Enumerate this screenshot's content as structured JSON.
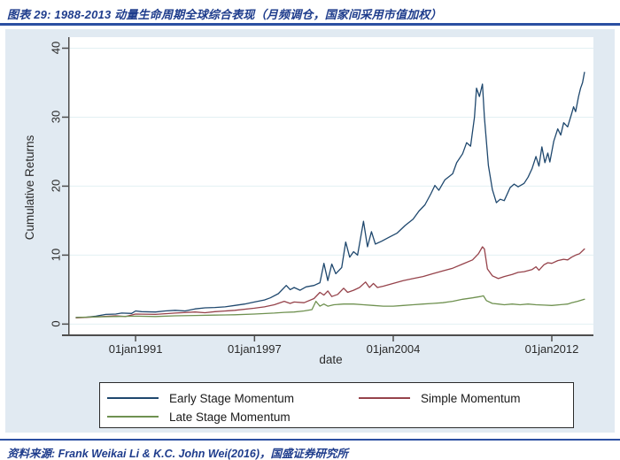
{
  "header": {
    "title": "图表 29:  1988-2013 动量生命周期全球综合表现（月频调仓，国家间采用市值加权）"
  },
  "footer": {
    "source": "资料来源:  Frank Weikai Li & K.C. John Wei(2016)，国盛证券研究所"
  },
  "colors": {
    "accent_blue": "#2b4fa2",
    "title_text": "#1e3c8c",
    "figure_background": "#e1eaf2",
    "plot_background": "#ffffff",
    "gridline": "#e2f0f2",
    "axis_line": "#4d4d4d",
    "navy_series": "#1f486e",
    "maroon_series": "#96434b",
    "green_series": "#6f9150"
  },
  "chart_data": {
    "type": "line",
    "title": "",
    "xlabel": "date",
    "ylabel": "Cumulative Returns",
    "grid": true,
    "legend_position": "bottom",
    "xlim": [
      1987.6,
      2014.1
    ],
    "ylim": [
      -1.75,
      41.6
    ],
    "y_ticks": [
      {
        "value": 0,
        "label": "0"
      },
      {
        "value": 10,
        "label": "10"
      },
      {
        "value": 20,
        "label": "20"
      },
      {
        "value": 30,
        "label": "30"
      },
      {
        "value": 40,
        "label": "40"
      }
    ],
    "x_ticks": [
      {
        "year": 1991,
        "label": "01jan1991"
      },
      {
        "year": 1997,
        "label": "01jan1997"
      },
      {
        "year": 2004,
        "label": "01jan2004"
      },
      {
        "year": 2012,
        "label": "01jan2012"
      }
    ],
    "series": [
      {
        "name": "Early Stage Momentum",
        "color": "#1f486e",
        "points": [
          [
            1988.0,
            0.95
          ],
          [
            1988.5,
            1.0
          ],
          [
            1989.0,
            1.15
          ],
          [
            1989.5,
            1.4
          ],
          [
            1990.0,
            1.45
          ],
          [
            1990.3,
            1.6
          ],
          [
            1990.8,
            1.55
          ],
          [
            1991.0,
            1.9
          ],
          [
            1991.3,
            1.8
          ],
          [
            1992.0,
            1.75
          ],
          [
            1992.5,
            1.9
          ],
          [
            1993.0,
            2.0
          ],
          [
            1993.5,
            1.9
          ],
          [
            1994.0,
            2.2
          ],
          [
            1994.5,
            2.35
          ],
          [
            1995.0,
            2.4
          ],
          [
            1995.5,
            2.5
          ],
          [
            1996.0,
            2.7
          ],
          [
            1996.5,
            2.9
          ],
          [
            1997.0,
            3.2
          ],
          [
            1997.5,
            3.5
          ],
          [
            1997.8,
            3.8
          ],
          [
            1998.2,
            4.4
          ],
          [
            1998.6,
            5.6
          ],
          [
            1998.8,
            5.0
          ],
          [
            1999.0,
            5.3
          ],
          [
            1999.3,
            4.9
          ],
          [
            1999.6,
            5.4
          ],
          [
            2000.0,
            5.6
          ],
          [
            2000.3,
            6.0
          ],
          [
            2000.5,
            8.8
          ],
          [
            2000.7,
            6.3
          ],
          [
            2000.9,
            8.7
          ],
          [
            2001.1,
            7.3
          ],
          [
            2001.4,
            8.2
          ],
          [
            2001.6,
            11.9
          ],
          [
            2001.8,
            9.7
          ],
          [
            2002.0,
            10.5
          ],
          [
            2002.2,
            10.0
          ],
          [
            2002.5,
            14.9
          ],
          [
            2002.7,
            11.2
          ],
          [
            2002.9,
            13.4
          ],
          [
            2003.1,
            11.6
          ],
          [
            2003.4,
            12.0
          ],
          [
            2003.8,
            12.6
          ],
          [
            2004.2,
            13.2
          ],
          [
            2004.6,
            14.3
          ],
          [
            2005.0,
            15.2
          ],
          [
            2005.3,
            16.4
          ],
          [
            2005.6,
            17.3
          ],
          [
            2005.9,
            18.9
          ],
          [
            2006.1,
            20.1
          ],
          [
            2006.3,
            19.4
          ],
          [
            2006.6,
            20.9
          ],
          [
            2007.0,
            21.8
          ],
          [
            2007.2,
            23.4
          ],
          [
            2007.5,
            24.7
          ],
          [
            2007.7,
            26.3
          ],
          [
            2007.9,
            25.8
          ],
          [
            2008.1,
            30.0
          ],
          [
            2008.2,
            34.2
          ],
          [
            2008.35,
            33.0
          ],
          [
            2008.5,
            34.8
          ],
          [
            2008.6,
            30.0
          ],
          [
            2008.8,
            23.0
          ],
          [
            2009.0,
            19.5
          ],
          [
            2009.2,
            17.6
          ],
          [
            2009.4,
            18.1
          ],
          [
            2009.6,
            17.9
          ],
          [
            2009.9,
            19.8
          ],
          [
            2010.1,
            20.3
          ],
          [
            2010.3,
            19.9
          ],
          [
            2010.6,
            20.4
          ],
          [
            2010.8,
            21.3
          ],
          [
            2011.0,
            22.5
          ],
          [
            2011.2,
            24.3
          ],
          [
            2011.35,
            22.9
          ],
          [
            2011.5,
            25.7
          ],
          [
            2011.65,
            23.4
          ],
          [
            2011.8,
            24.8
          ],
          [
            2011.9,
            23.5
          ],
          [
            2012.1,
            26.5
          ],
          [
            2012.3,
            28.3
          ],
          [
            2012.45,
            27.4
          ],
          [
            2012.6,
            29.2
          ],
          [
            2012.8,
            28.6
          ],
          [
            2013.0,
            30.5
          ],
          [
            2013.1,
            31.5
          ],
          [
            2013.2,
            30.8
          ],
          [
            2013.35,
            33.0
          ],
          [
            2013.45,
            34.2
          ],
          [
            2013.55,
            35.0
          ],
          [
            2013.65,
            36.5
          ]
        ]
      },
      {
        "name": "Simple Momentum",
        "color": "#96434b",
        "points": [
          [
            1988.0,
            0.9
          ],
          [
            1989.0,
            1.05
          ],
          [
            1990.0,
            1.2
          ],
          [
            1990.5,
            1.1
          ],
          [
            1991.0,
            1.45
          ],
          [
            1992.0,
            1.4
          ],
          [
            1993.0,
            1.6
          ],
          [
            1994.0,
            1.75
          ],
          [
            1994.5,
            1.65
          ],
          [
            1995.0,
            1.8
          ],
          [
            1996.0,
            2.0
          ],
          [
            1997.0,
            2.3
          ],
          [
            1997.5,
            2.5
          ],
          [
            1998.0,
            2.8
          ],
          [
            1998.5,
            3.3
          ],
          [
            1998.8,
            3.0
          ],
          [
            1999.0,
            3.2
          ],
          [
            1999.5,
            3.1
          ],
          [
            2000.0,
            3.7
          ],
          [
            2000.3,
            4.6
          ],
          [
            2000.5,
            4.2
          ],
          [
            2000.7,
            4.8
          ],
          [
            2000.9,
            4.0
          ],
          [
            2001.2,
            4.3
          ],
          [
            2001.5,
            5.2
          ],
          [
            2001.7,
            4.6
          ],
          [
            2002.0,
            4.9
          ],
          [
            2002.3,
            5.3
          ],
          [
            2002.6,
            6.1
          ],
          [
            2002.8,
            5.3
          ],
          [
            2003.0,
            5.9
          ],
          [
            2003.2,
            5.3
          ],
          [
            2003.5,
            5.5
          ],
          [
            2004.0,
            5.9
          ],
          [
            2004.5,
            6.3
          ],
          [
            2005.0,
            6.6
          ],
          [
            2005.5,
            6.9
          ],
          [
            2006.0,
            7.3
          ],
          [
            2006.5,
            7.7
          ],
          [
            2007.0,
            8.1
          ],
          [
            2007.5,
            8.7
          ],
          [
            2008.0,
            9.3
          ],
          [
            2008.3,
            10.2
          ],
          [
            2008.5,
            11.2
          ],
          [
            2008.6,
            10.9
          ],
          [
            2008.75,
            8.0
          ],
          [
            2009.0,
            7.0
          ],
          [
            2009.3,
            6.6
          ],
          [
            2009.6,
            6.9
          ],
          [
            2010.0,
            7.2
          ],
          [
            2010.3,
            7.5
          ],
          [
            2010.6,
            7.6
          ],
          [
            2011.0,
            7.9
          ],
          [
            2011.2,
            8.3
          ],
          [
            2011.35,
            7.8
          ],
          [
            2011.6,
            8.6
          ],
          [
            2011.8,
            8.9
          ],
          [
            2012.0,
            8.8
          ],
          [
            2012.3,
            9.2
          ],
          [
            2012.6,
            9.4
          ],
          [
            2012.8,
            9.3
          ],
          [
            2013.0,
            9.7
          ],
          [
            2013.2,
            10.0
          ],
          [
            2013.4,
            10.2
          ],
          [
            2013.65,
            10.9
          ]
        ]
      },
      {
        "name": "Late Stage Momentum",
        "color": "#6f9150",
        "points": [
          [
            1988.0,
            0.95
          ],
          [
            1989.0,
            1.05
          ],
          [
            1990.0,
            1.1
          ],
          [
            1991.0,
            1.15
          ],
          [
            1992.0,
            1.1
          ],
          [
            1993.0,
            1.2
          ],
          [
            1994.0,
            1.25
          ],
          [
            1995.0,
            1.3
          ],
          [
            1996.0,
            1.35
          ],
          [
            1997.0,
            1.45
          ],
          [
            1998.0,
            1.6
          ],
          [
            1998.5,
            1.7
          ],
          [
            1999.0,
            1.75
          ],
          [
            1999.5,
            1.9
          ],
          [
            1999.9,
            2.1
          ],
          [
            2000.1,
            3.3
          ],
          [
            2000.3,
            2.6
          ],
          [
            2000.5,
            2.9
          ],
          [
            2000.7,
            2.6
          ],
          [
            2001.0,
            2.8
          ],
          [
            2001.5,
            2.9
          ],
          [
            2002.0,
            2.9
          ],
          [
            2002.5,
            2.8
          ],
          [
            2003.0,
            2.7
          ],
          [
            2003.5,
            2.6
          ],
          [
            2004.0,
            2.6
          ],
          [
            2004.5,
            2.7
          ],
          [
            2005.0,
            2.8
          ],
          [
            2005.5,
            2.9
          ],
          [
            2006.0,
            3.0
          ],
          [
            2006.5,
            3.1
          ],
          [
            2007.0,
            3.3
          ],
          [
            2007.5,
            3.6
          ],
          [
            2008.0,
            3.8
          ],
          [
            2008.4,
            4.0
          ],
          [
            2008.55,
            4.1
          ],
          [
            2008.7,
            3.4
          ],
          [
            2009.0,
            3.0
          ],
          [
            2009.3,
            2.9
          ],
          [
            2009.6,
            2.8
          ],
          [
            2010.0,
            2.9
          ],
          [
            2010.4,
            2.8
          ],
          [
            2010.8,
            2.9
          ],
          [
            2011.2,
            2.8
          ],
          [
            2011.6,
            2.75
          ],
          [
            2012.0,
            2.7
          ],
          [
            2012.4,
            2.8
          ],
          [
            2012.8,
            2.9
          ],
          [
            2013.0,
            3.1
          ],
          [
            2013.3,
            3.3
          ],
          [
            2013.65,
            3.6
          ]
        ]
      }
    ]
  }
}
